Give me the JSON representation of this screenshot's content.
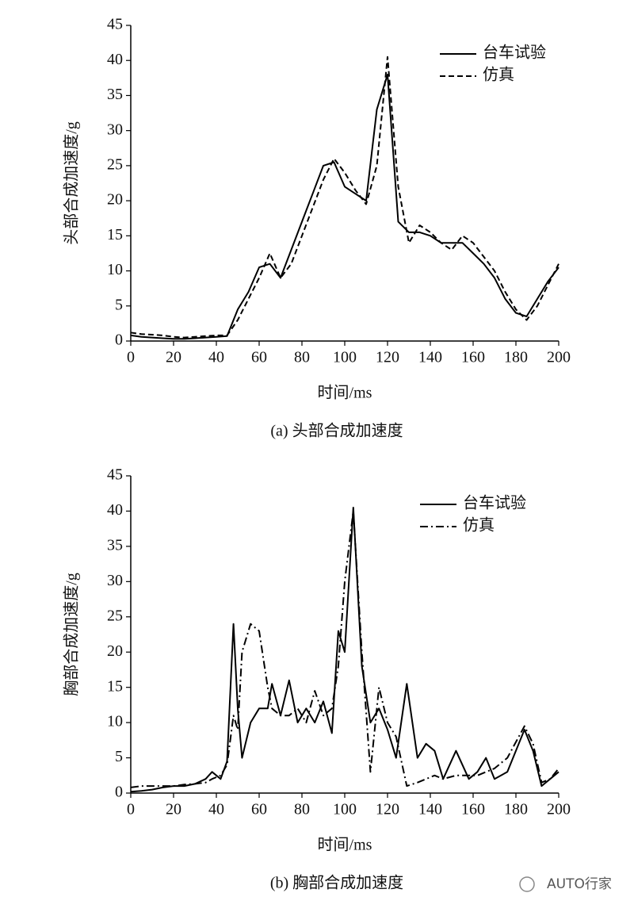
{
  "chart_data": [
    {
      "type": "line",
      "caption": "(a) 头部合成加速度",
      "x_label": "时间/ms",
      "y_label": "头部合成加速度/g",
      "xlim": [
        0,
        200
      ],
      "xticks": [
        0,
        20,
        40,
        60,
        80,
        100,
        120,
        140,
        160,
        180,
        200
      ],
      "ylim": [
        0,
        45
      ],
      "yticks": [
        0,
        5,
        10,
        15,
        20,
        25,
        30,
        35,
        40,
        45
      ],
      "x": [
        0,
        5,
        10,
        15,
        20,
        25,
        30,
        35,
        40,
        45,
        50,
        55,
        60,
        65,
        70,
        75,
        80,
        85,
        90,
        95,
        100,
        105,
        110,
        115,
        120,
        125,
        130,
        135,
        140,
        145,
        150,
        155,
        160,
        165,
        170,
        175,
        180,
        185,
        190,
        195,
        200
      ],
      "series": [
        {
          "name": "台车试验",
          "color": "#000000",
          "line_style": "solid",
          "values": [
            0.8,
            0.6,
            0.5,
            0.4,
            0.3,
            0.3,
            0.4,
            0.5,
            0.6,
            0.7,
            4.5,
            7,
            10.5,
            11,
            9,
            13,
            17,
            21,
            25,
            25.5,
            22,
            21,
            20,
            33,
            38,
            17,
            15.5,
            15.5,
            15,
            14,
            14,
            14,
            12.5,
            11,
            9,
            6,
            4,
            3.5,
            6,
            8.5,
            10.5
          ]
        },
        {
          "name": "仿真",
          "color": "#000000",
          "line_style": "dashed",
          "values": [
            1.2,
            1,
            0.9,
            0.8,
            0.6,
            0.5,
            0.6,
            0.7,
            0.8,
            0.8,
            3,
            6,
            9,
            12.5,
            9,
            11,
            15,
            19,
            23,
            26,
            24,
            21.5,
            19.5,
            25,
            40.5,
            22,
            14,
            16.5,
            15.5,
            14,
            13,
            15,
            14,
            12,
            10,
            7,
            4.5,
            3,
            5,
            8,
            11
          ]
        }
      ]
    },
    {
      "type": "line",
      "caption": "(b) 胸部合成加速度",
      "x_label": "时间/ms",
      "y_label": "胸部合成加速度/g",
      "xlim": [
        0,
        200
      ],
      "xticks": [
        0,
        20,
        40,
        60,
        80,
        100,
        120,
        140,
        160,
        180,
        200
      ],
      "ylim": [
        0,
        45
      ],
      "yticks": [
        0,
        5,
        10,
        15,
        20,
        25,
        30,
        35,
        40,
        45
      ],
      "x": [
        0,
        5,
        10,
        15,
        20,
        25,
        30,
        35,
        38,
        42,
        45,
        48,
        50,
        52,
        56,
        60,
        64,
        66,
        70,
        74,
        78,
        82,
        86,
        90,
        94,
        97,
        100,
        104,
        108,
        112,
        116,
        120,
        124,
        129,
        134,
        138,
        142,
        146,
        152,
        158,
        162,
        166,
        170,
        176,
        184,
        188,
        192,
        196,
        200
      ],
      "series": [
        {
          "name": "台车试验",
          "color": "#000000",
          "line_style": "solid",
          "values": [
            0.2,
            0.3,
            0.5,
            0.8,
            1,
            1,
            1.3,
            2,
            3,
            2,
            4.5,
            24,
            12,
            5,
            10,
            12,
            12,
            15.5,
            11,
            16,
            10,
            12,
            10,
            13,
            8.5,
            23,
            20,
            40.5,
            18,
            10,
            12,
            9,
            5,
            15.5,
            5,
            7,
            6,
            2,
            6,
            2,
            3,
            5,
            2,
            3,
            9,
            6,
            1,
            2,
            3
          ]
        },
        {
          "name": "仿真",
          "color": "#000000",
          "line_style": "dashdot",
          "values": [
            0.8,
            1,
            1,
            1,
            1,
            1.2,
            1.3,
            1.5,
            2,
            2.5,
            4,
            11,
            9,
            20,
            24,
            23,
            15,
            12,
            11,
            11,
            12,
            10,
            14.5,
            11,
            12,
            18,
            30,
            40,
            20,
            3,
            15,
            10,
            8,
            1,
            1.5,
            2,
            2.5,
            2,
            2.5,
            2.5,
            2.5,
            3,
            3.5,
            5,
            9.5,
            7,
            1.5,
            2,
            3.5
          ]
        }
      ]
    }
  ],
  "watermark": "AUTO行家"
}
